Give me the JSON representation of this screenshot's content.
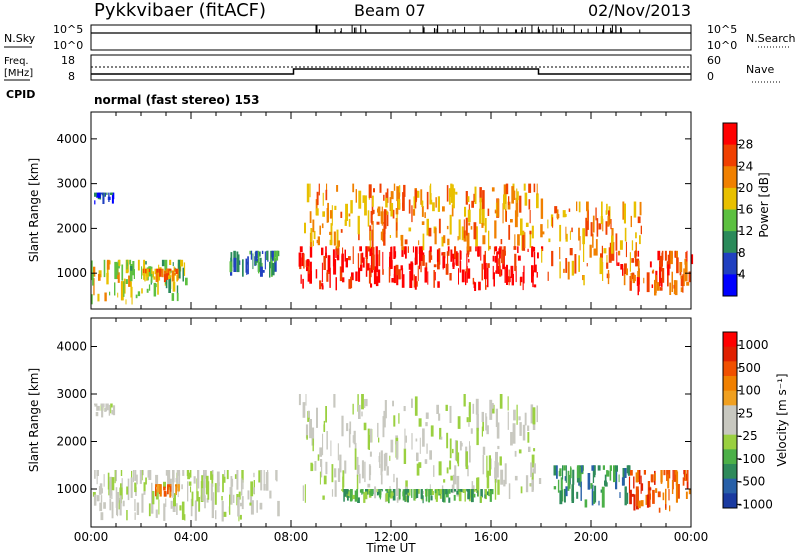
{
  "header": {
    "station": "Pykkvibaer (fitACF)",
    "beam": "Beam 07",
    "date": "02/Nov/2013"
  },
  "strips": {
    "nsky_label": "N.Sky",
    "nsearch_label": "N.Search",
    "nsky_ticks": [
      "10^5",
      "10^0"
    ],
    "nsearch_ticks": [
      "10^5",
      "10^0"
    ],
    "freq_label_1": "Freq.",
    "freq_label_2": "[MHz]",
    "freq_ticks": [
      "18",
      "8"
    ],
    "nave_label": "Nave",
    "nave_ticks": [
      "60",
      "0"
    ],
    "cpid_label": "CPID",
    "cpid_text": "normal (fast stereo) 153"
  },
  "chart_data": [
    {
      "type": "heatmap",
      "name": "power",
      "ylabel": "Slant Range [km]",
      "yticks": [
        "1000",
        "2000",
        "3000",
        "4000"
      ],
      "ylim": [
        200,
        4600
      ],
      "colorbar_label": "Power [dB]",
      "colorbar_ticks": [
        "4",
        "8",
        "12",
        "16",
        "20",
        "24",
        "28"
      ],
      "colors": [
        "#0000ff",
        "#2040c0",
        "#2a8a5a",
        "#5cc040",
        "#e8c000",
        "#f08000",
        "#f04000",
        "#ff0000"
      ],
      "regions": [
        {
          "t": [
            0.1,
            0.9
          ],
          "r": [
            2500,
            2800
          ],
          "level": 1
        },
        {
          "t": [
            0.0,
            1.5
          ],
          "r": [
            300,
            1300
          ],
          "level": 4
        },
        {
          "t": [
            1.5,
            3.8
          ],
          "r": [
            300,
            1300
          ],
          "level": 3
        },
        {
          "t": [
            2.0,
            3.5
          ],
          "r": [
            800,
            1100
          ],
          "level": 5
        },
        {
          "t": [
            5.5,
            7.5
          ],
          "r": [
            900,
            1500
          ],
          "level": 2
        },
        {
          "t": [
            8.3,
            18.0
          ],
          "r": [
            600,
            1600
          ],
          "level": 7
        },
        {
          "t": [
            8.5,
            18.0
          ],
          "r": [
            1500,
            3000
          ],
          "level": 5
        },
        {
          "t": [
            18.0,
            22.0
          ],
          "r": [
            700,
            2600
          ],
          "level": 5
        },
        {
          "t": [
            21.0,
            24.0
          ],
          "r": [
            500,
            1500
          ],
          "level": 6
        }
      ]
    },
    {
      "type": "heatmap",
      "name": "velocity",
      "xlabel": "Time UT",
      "xticks": [
        "00:00",
        "04:00",
        "08:00",
        "12:00",
        "16:00",
        "20:00",
        "00:00"
      ],
      "ylabel": "Slant Range [km]",
      "yticks": [
        "1000",
        "2000",
        "3000",
        "4000"
      ],
      "ylim": [
        200,
        4600
      ],
      "colorbar_label": "Velocity [m s⁻¹]",
      "colorbar_ticks": [
        "1000",
        "500",
        "100",
        "25",
        "-25",
        "-100",
        "-500",
        "-1000"
      ],
      "colors": [
        "#1a3aa0",
        "#2860a8",
        "#2e8a5a",
        "#4cb048",
        "#9ad040",
        "#c8c8c0",
        "#c8c8c0",
        "#f0a020",
        "#f08000",
        "#f05000",
        "#e02000",
        "#ff0000"
      ],
      "regions": [
        {
          "t": [
            0.1,
            0.9
          ],
          "r": [
            2500,
            2800
          ],
          "level": 5
        },
        {
          "t": [
            0.0,
            7.5
          ],
          "r": [
            300,
            1400
          ],
          "level": 5
        },
        {
          "t": [
            2.5,
            3.5
          ],
          "r": [
            800,
            1100
          ],
          "level": 8
        },
        {
          "t": [
            8.3,
            18.0
          ],
          "r": [
            700,
            3000
          ],
          "level": 5
        },
        {
          "t": [
            10.0,
            16.0
          ],
          "r": [
            700,
            1000
          ],
          "level": 3
        },
        {
          "t": [
            18.5,
            21.5
          ],
          "r": [
            600,
            1500
          ],
          "level": 2
        },
        {
          "t": [
            21.5,
            24.0
          ],
          "r": [
            500,
            1400
          ],
          "level": 9
        }
      ]
    }
  ]
}
